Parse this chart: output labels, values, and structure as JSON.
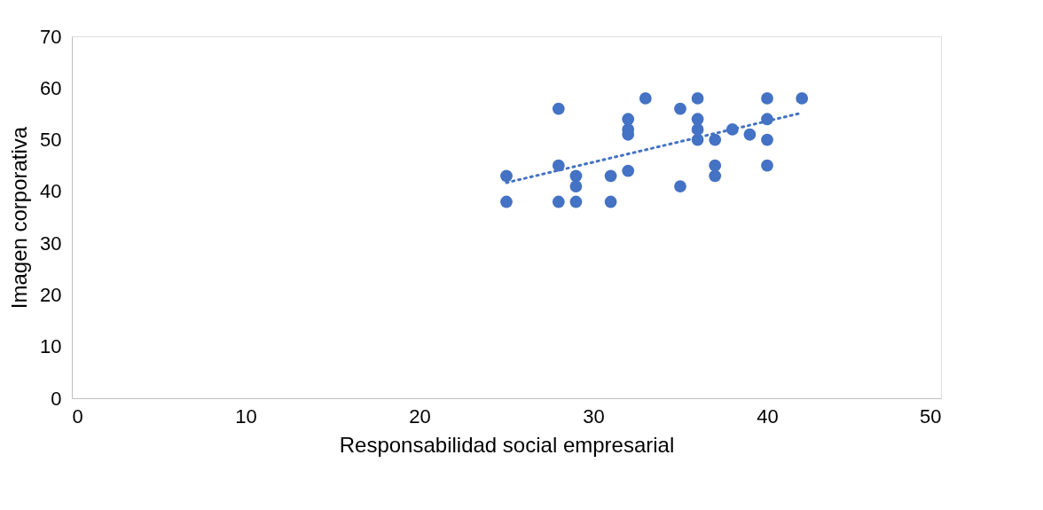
{
  "chart_data": {
    "type": "scatter",
    "xlabel": "Responsabilidad social empresarial",
    "ylabel": "Imagen corporativa",
    "xlim": [
      0,
      50
    ],
    "xticks": [
      0,
      10,
      20,
      30,
      40,
      50
    ],
    "ylim": [
      0,
      70
    ],
    "yticks": [
      0,
      10,
      20,
      30,
      40,
      50,
      60,
      70
    ],
    "grid": false,
    "series": [
      {
        "color": "#4472c4",
        "marker": "circle",
        "x": [
          25,
          25,
          28,
          28,
          28,
          29,
          29,
          29,
          31,
          31,
          32,
          32,
          32,
          32,
          33,
          35,
          35,
          36,
          36,
          36,
          36,
          37,
          37,
          37,
          38,
          39,
          40,
          40,
          40,
          40,
          42
        ],
        "values": [
          43,
          38,
          56,
          45,
          38,
          43,
          41,
          38,
          43,
          38,
          54,
          52,
          51,
          44,
          58,
          56,
          41,
          58,
          54,
          52,
          50,
          50,
          45,
          43,
          52,
          51,
          58,
          54,
          50,
          45,
          58
        ]
      },
      {
        "type": "line",
        "color": "#4472c4",
        "marker": "none",
        "line_style": "dotted",
        "x": [
          25,
          42
        ],
        "values": [
          41.7,
          55.2
        ]
      }
    ]
  }
}
